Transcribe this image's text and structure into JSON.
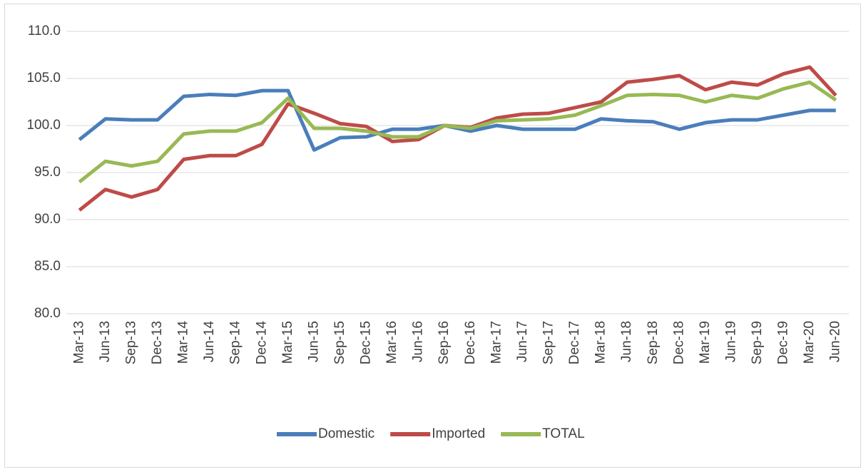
{
  "chart_data": {
    "type": "line",
    "categories": [
      "Mar-13",
      "Jun-13",
      "Sep-13",
      "Dec-13",
      "Mar-14",
      "Jun-14",
      "Sep-14",
      "Dec-14",
      "Mar-15",
      "Jun-15",
      "Sep-15",
      "Dec-15",
      "Mar-16",
      "Jun-16",
      "Sep-16",
      "Dec-16",
      "Mar-17",
      "Jun-17",
      "Sep-17",
      "Dec-17",
      "Mar-18",
      "Jun-18",
      "Sep-18",
      "Dec-18",
      "Mar-19",
      "Jun-19",
      "Sep-19",
      "Dec-19",
      "Mar-20",
      "Jun-20"
    ],
    "series": [
      {
        "name": "Domestic",
        "color": "#4a7ebb",
        "values": [
          98.5,
          100.7,
          100.6,
          100.6,
          103.1,
          103.3,
          103.2,
          103.7,
          103.7,
          97.4,
          98.7,
          98.8,
          99.6,
          99.6,
          100.0,
          99.4,
          100.0,
          99.6,
          99.6,
          99.6,
          100.7,
          100.5,
          100.4,
          99.6,
          100.3,
          100.6,
          100.6,
          101.1,
          101.6,
          101.6
        ]
      },
      {
        "name": "Imported",
        "color": "#be4b48",
        "values": [
          91.0,
          93.2,
          92.4,
          93.2,
          96.4,
          96.8,
          96.8,
          98.0,
          102.3,
          101.3,
          100.2,
          99.9,
          98.3,
          98.5,
          100.0,
          99.8,
          100.8,
          101.2,
          101.3,
          101.9,
          102.5,
          104.6,
          104.9,
          105.3,
          103.8,
          104.6,
          104.3,
          105.5,
          106.2,
          103.2
        ]
      },
      {
        "name": "TOTAL",
        "color": "#98b954",
        "values": [
          94.0,
          96.2,
          95.7,
          96.2,
          99.1,
          99.4,
          99.4,
          100.3,
          102.9,
          99.7,
          99.7,
          99.4,
          98.8,
          98.8,
          100.0,
          99.7,
          100.5,
          100.6,
          100.7,
          101.1,
          102.1,
          103.2,
          103.3,
          103.2,
          102.5,
          103.2,
          102.9,
          103.9,
          104.6,
          102.7
        ]
      }
    ],
    "ylim": [
      80,
      110
    ],
    "yticks": [
      {
        "value": 80,
        "label": "80.0"
      },
      {
        "value": 85,
        "label": "85.0"
      },
      {
        "value": 90,
        "label": "90.0"
      },
      {
        "value": 95,
        "label": "95.0"
      },
      {
        "value": 100,
        "label": "100.0"
      },
      {
        "value": 105,
        "label": "105.0"
      },
      {
        "value": 110,
        "label": "110.0"
      }
    ],
    "grid": true,
    "legend": "bottom"
  }
}
